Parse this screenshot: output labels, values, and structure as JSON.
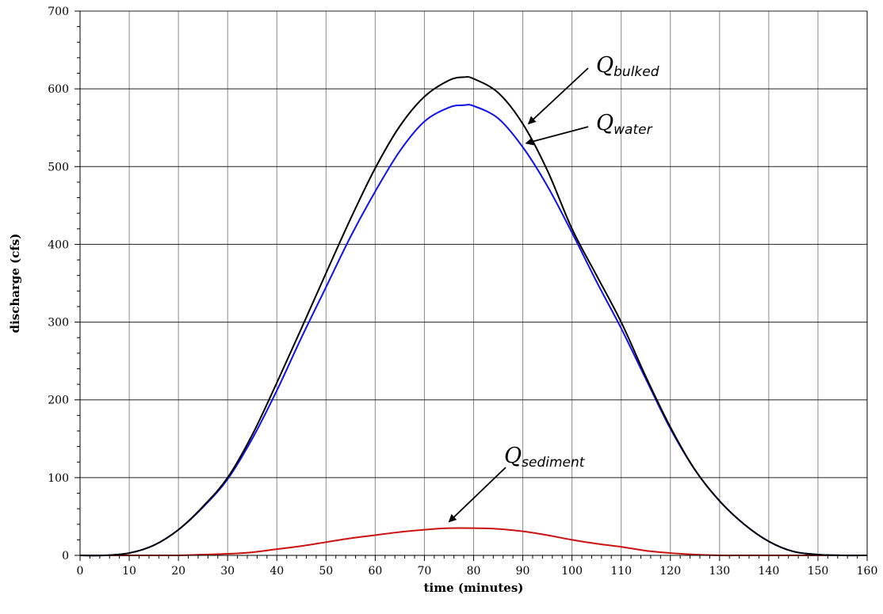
{
  "chart_data": {
    "type": "line",
    "xlabel": "time (minutes)",
    "ylabel": "discharge (cfs)",
    "xlim": [
      0,
      160
    ],
    "ylim": [
      0,
      700
    ],
    "x_ticks": [
      0,
      10,
      20,
      30,
      40,
      50,
      60,
      70,
      80,
      90,
      100,
      110,
      120,
      130,
      140,
      150,
      160
    ],
    "x_tick_labels": [
      "0",
      "10",
      "20",
      "30",
      "40",
      "50",
      "60",
      "70",
      "80",
      "90",
      "100",
      "110",
      "120",
      "130",
      "140",
      "150",
      "160"
    ],
    "y_ticks": [
      0,
      100,
      200,
      300,
      400,
      500,
      600,
      700
    ],
    "y_tick_labels": [
      "0",
      "100",
      "200",
      "300",
      "400",
      "500",
      "600",
      "700"
    ],
    "grid": true,
    "legend": "none",
    "series": [
      {
        "key": "bulked",
        "color": "#000000",
        "x": [
          0,
          5,
          10,
          15,
          20,
          25,
          30,
          35,
          40,
          45,
          50,
          55,
          60,
          65,
          70,
          75,
          78,
          80,
          85,
          90,
          95,
          100,
          105,
          110,
          115,
          120,
          125,
          130,
          135,
          140,
          145,
          150,
          155,
          160
        ],
        "y": [
          0,
          0,
          3,
          13,
          33,
          63,
          100,
          155,
          222,
          292,
          363,
          433,
          498,
          552,
          590,
          611,
          615,
          613,
          595,
          555,
          495,
          420,
          360,
          300,
          230,
          165,
          110,
          70,
          40,
          18,
          5,
          1,
          0,
          0
        ]
      },
      {
        "key": "water",
        "color": "#1010ee",
        "x": [
          0,
          5,
          10,
          15,
          20,
          25,
          30,
          35,
          40,
          45,
          50,
          55,
          60,
          65,
          70,
          75,
          78,
          80,
          85,
          90,
          95,
          100,
          105,
          110,
          115,
          120,
          125,
          130,
          135,
          140,
          145,
          150,
          155,
          160
        ],
        "y": [
          0,
          0,
          3,
          13,
          33,
          62,
          98,
          150,
          212,
          280,
          345,
          410,
          468,
          520,
          558,
          576,
          579,
          578,
          562,
          525,
          475,
          415,
          352,
          292,
          227,
          163,
          110,
          70,
          40,
          18,
          5,
          1,
          0,
          0
        ]
      },
      {
        "key": "sediment",
        "color": "#cc1111",
        "x": [
          0,
          10,
          20,
          25,
          30,
          35,
          40,
          45,
          50,
          55,
          60,
          65,
          70,
          75,
          80,
          85,
          90,
          95,
          100,
          105,
          110,
          115,
          120,
          125,
          130,
          135,
          140,
          150,
          160
        ],
        "y": [
          0,
          0,
          0,
          1,
          2,
          4,
          8,
          12,
          17,
          22,
          26,
          30,
          33,
          35,
          35,
          34,
          31,
          26,
          20,
          15,
          11,
          6,
          3,
          1,
          0,
          0,
          0,
          0,
          0
        ]
      }
    ],
    "annotations": [
      {
        "main": "Q",
        "sub": "bulked",
        "points_to_x": 90.5,
        "points_to_y": 555
      },
      {
        "main": "Q",
        "sub": "water",
        "points_to_x": 90,
        "points_to_y": 530
      },
      {
        "main": "Q",
        "sub": "sediment",
        "points_to_x": 75,
        "points_to_y": 35
      }
    ]
  }
}
